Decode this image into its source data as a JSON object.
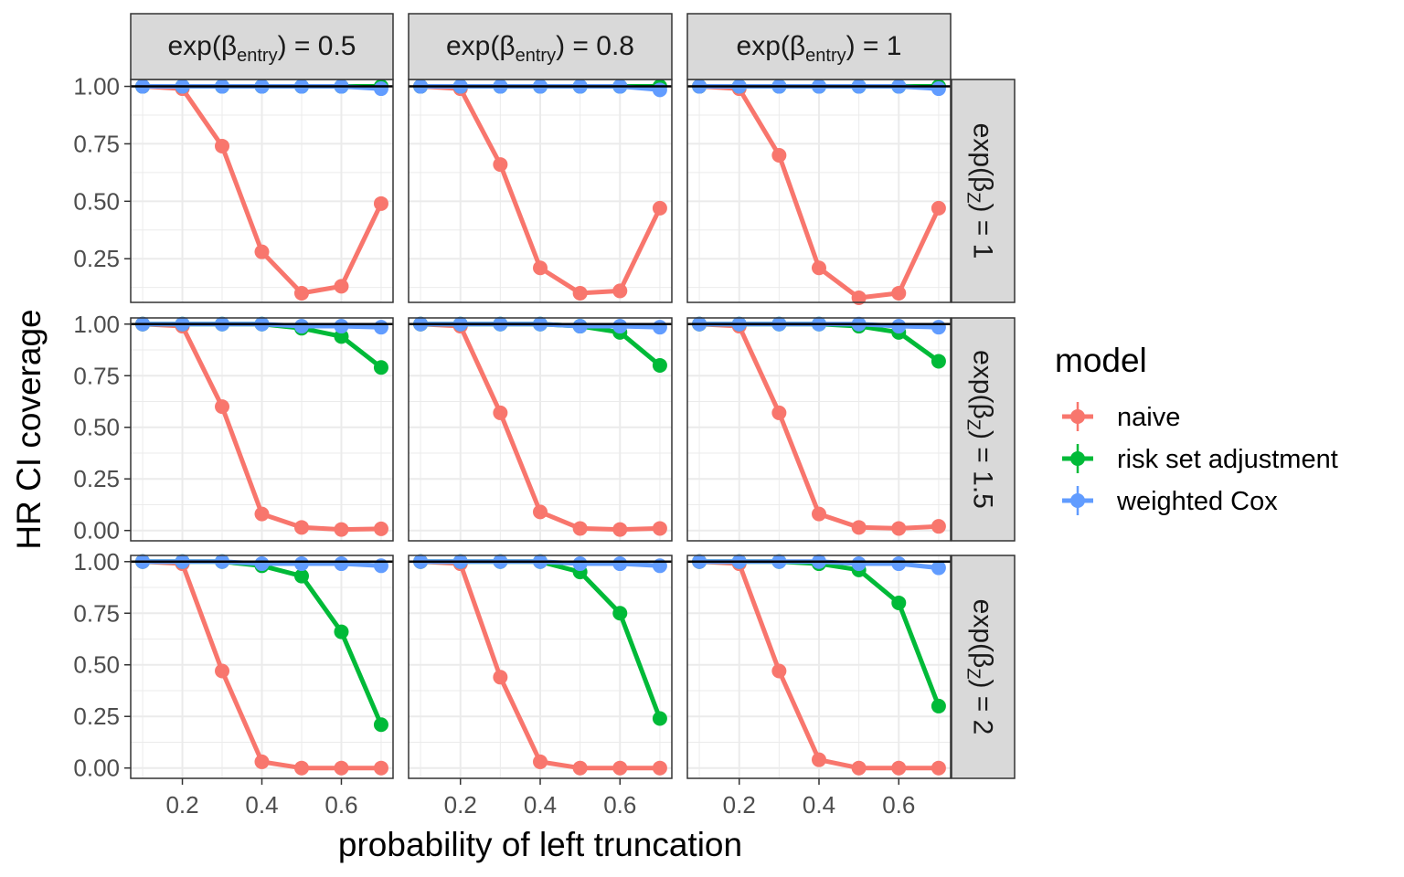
{
  "chart_data": {
    "type": "line",
    "xlabel": "probability of left truncation",
    "ylabel": "HR CI coverage",
    "x_ticks": [
      "0.2",
      "0.4",
      "0.6"
    ],
    "x_tick_values": [
      0.2,
      0.4,
      0.6
    ],
    "xlim": [
      0.07,
      0.73
    ],
    "reference_line": 1.0,
    "reference_color": "#000000",
    "column_facets": [
      {
        "prefix": "exp(",
        "symbol": "β",
        "sub": "entry",
        "suffix": ") = 0.5"
      },
      {
        "prefix": "exp(",
        "symbol": "β",
        "sub": "entry",
        "suffix": ") = 0.8"
      },
      {
        "prefix": "exp(",
        "symbol": "β",
        "sub": "entry",
        "suffix": ") = 1"
      }
    ],
    "row_facets": [
      {
        "prefix": "exp(",
        "symbol": "β",
        "sub": "Z",
        "suffix": ") = 1",
        "ylim": [
          0.06,
          1.03
        ],
        "y_tick_values": [
          0.25,
          0.5,
          0.75,
          1.0
        ],
        "y_ticks": [
          "0.25",
          "0.50",
          "0.75",
          "1.00"
        ]
      },
      {
        "prefix": "exp(",
        "symbol": "β",
        "sub": "Z",
        "suffix": ") = 1.5",
        "ylim": [
          -0.05,
          1.03
        ],
        "y_tick_values": [
          0.0,
          0.25,
          0.5,
          0.75,
          1.0
        ],
        "y_ticks": [
          "0.00",
          "0.25",
          "0.50",
          "0.75",
          "1.00"
        ]
      },
      {
        "prefix": "exp(",
        "symbol": "β",
        "sub": "Z",
        "suffix": ") = 2",
        "ylim": [
          -0.05,
          1.03
        ],
        "y_tick_values": [
          0.0,
          0.25,
          0.5,
          0.75,
          1.0
        ],
        "y_ticks": [
          "0.00",
          "0.25",
          "0.50",
          "0.75",
          "1.00"
        ]
      }
    ],
    "x": [
      0.1,
      0.2,
      0.3,
      0.4,
      0.5,
      0.6,
      0.7
    ],
    "legend": {
      "title": "model",
      "entries": [
        "naive",
        "risk set adjustment",
        "weighted Cox"
      ],
      "position": "right"
    },
    "series": [
      {
        "name": "naive",
        "color": "#F8766D"
      },
      {
        "name": "risk set adjustment",
        "color": "#00BA38"
      },
      {
        "name": "weighted Cox",
        "color": "#619CFF"
      }
    ],
    "panels": [
      [
        {
          "naive": [
            1.0,
            0.99,
            0.74,
            0.28,
            0.1,
            0.13,
            0.49
          ],
          "risk set adjustment": [
            1.0,
            1.0,
            1.0,
            1.0,
            1.0,
            1.0,
            1.0
          ],
          "weighted Cox": [
            1.0,
            1.0,
            1.0,
            1.0,
            1.0,
            1.0,
            0.99
          ]
        },
        {
          "naive": [
            1.0,
            0.99,
            0.66,
            0.21,
            0.1,
            0.11,
            0.47
          ],
          "risk set adjustment": [
            1.0,
            1.0,
            1.0,
            1.0,
            1.0,
            1.0,
            1.0
          ],
          "weighted Cox": [
            1.0,
            1.0,
            1.0,
            1.0,
            1.0,
            1.0,
            0.985
          ]
        },
        {
          "naive": [
            1.0,
            0.99,
            0.7,
            0.21,
            0.08,
            0.1,
            0.47
          ],
          "risk set adjustment": [
            1.0,
            1.0,
            1.0,
            1.0,
            1.0,
            1.0,
            1.0
          ],
          "weighted Cox": [
            1.0,
            1.0,
            1.0,
            1.0,
            1.0,
            1.0,
            0.99
          ]
        }
      ],
      [
        {
          "naive": [
            1.0,
            0.99,
            0.6,
            0.08,
            0.015,
            0.005,
            0.008
          ],
          "risk set adjustment": [
            1.0,
            1.0,
            1.0,
            1.0,
            0.98,
            0.94,
            0.79
          ],
          "weighted Cox": [
            1.0,
            1.0,
            1.0,
            1.0,
            0.99,
            0.99,
            0.985
          ]
        },
        {
          "naive": [
            1.0,
            0.99,
            0.57,
            0.09,
            0.01,
            0.005,
            0.01
          ],
          "risk set adjustment": [
            1.0,
            1.0,
            1.0,
            1.0,
            0.99,
            0.96,
            0.8
          ],
          "weighted Cox": [
            1.0,
            1.0,
            1.0,
            1.0,
            0.99,
            0.99,
            0.985
          ]
        },
        {
          "naive": [
            1.0,
            0.99,
            0.57,
            0.08,
            0.015,
            0.01,
            0.02
          ],
          "risk set adjustment": [
            1.0,
            1.0,
            1.0,
            1.0,
            0.99,
            0.96,
            0.82
          ],
          "weighted Cox": [
            1.0,
            1.0,
            1.0,
            1.0,
            1.0,
            0.99,
            0.985
          ]
        }
      ],
      [
        {
          "naive": [
            1.0,
            0.99,
            0.47,
            0.03,
            0.0,
            0.0,
            0.0
          ],
          "risk set adjustment": [
            1.0,
            1.0,
            1.0,
            0.98,
            0.93,
            0.66,
            0.21
          ],
          "weighted Cox": [
            1.0,
            1.0,
            1.0,
            0.99,
            0.99,
            0.99,
            0.98
          ]
        },
        {
          "naive": [
            1.0,
            0.99,
            0.44,
            0.03,
            0.0,
            0.0,
            0.0
          ],
          "risk set adjustment": [
            1.0,
            1.0,
            1.0,
            1.0,
            0.95,
            0.75,
            0.24
          ],
          "weighted Cox": [
            1.0,
            1.0,
            1.0,
            1.0,
            0.99,
            0.99,
            0.98
          ]
        },
        {
          "naive": [
            1.0,
            0.99,
            0.47,
            0.04,
            0.0,
            0.0,
            0.0
          ],
          "risk set adjustment": [
            1.0,
            1.0,
            1.0,
            0.99,
            0.96,
            0.8,
            0.3
          ],
          "weighted Cox": [
            1.0,
            1.0,
            1.0,
            1.0,
            0.99,
            0.99,
            0.97
          ]
        }
      ]
    ]
  }
}
